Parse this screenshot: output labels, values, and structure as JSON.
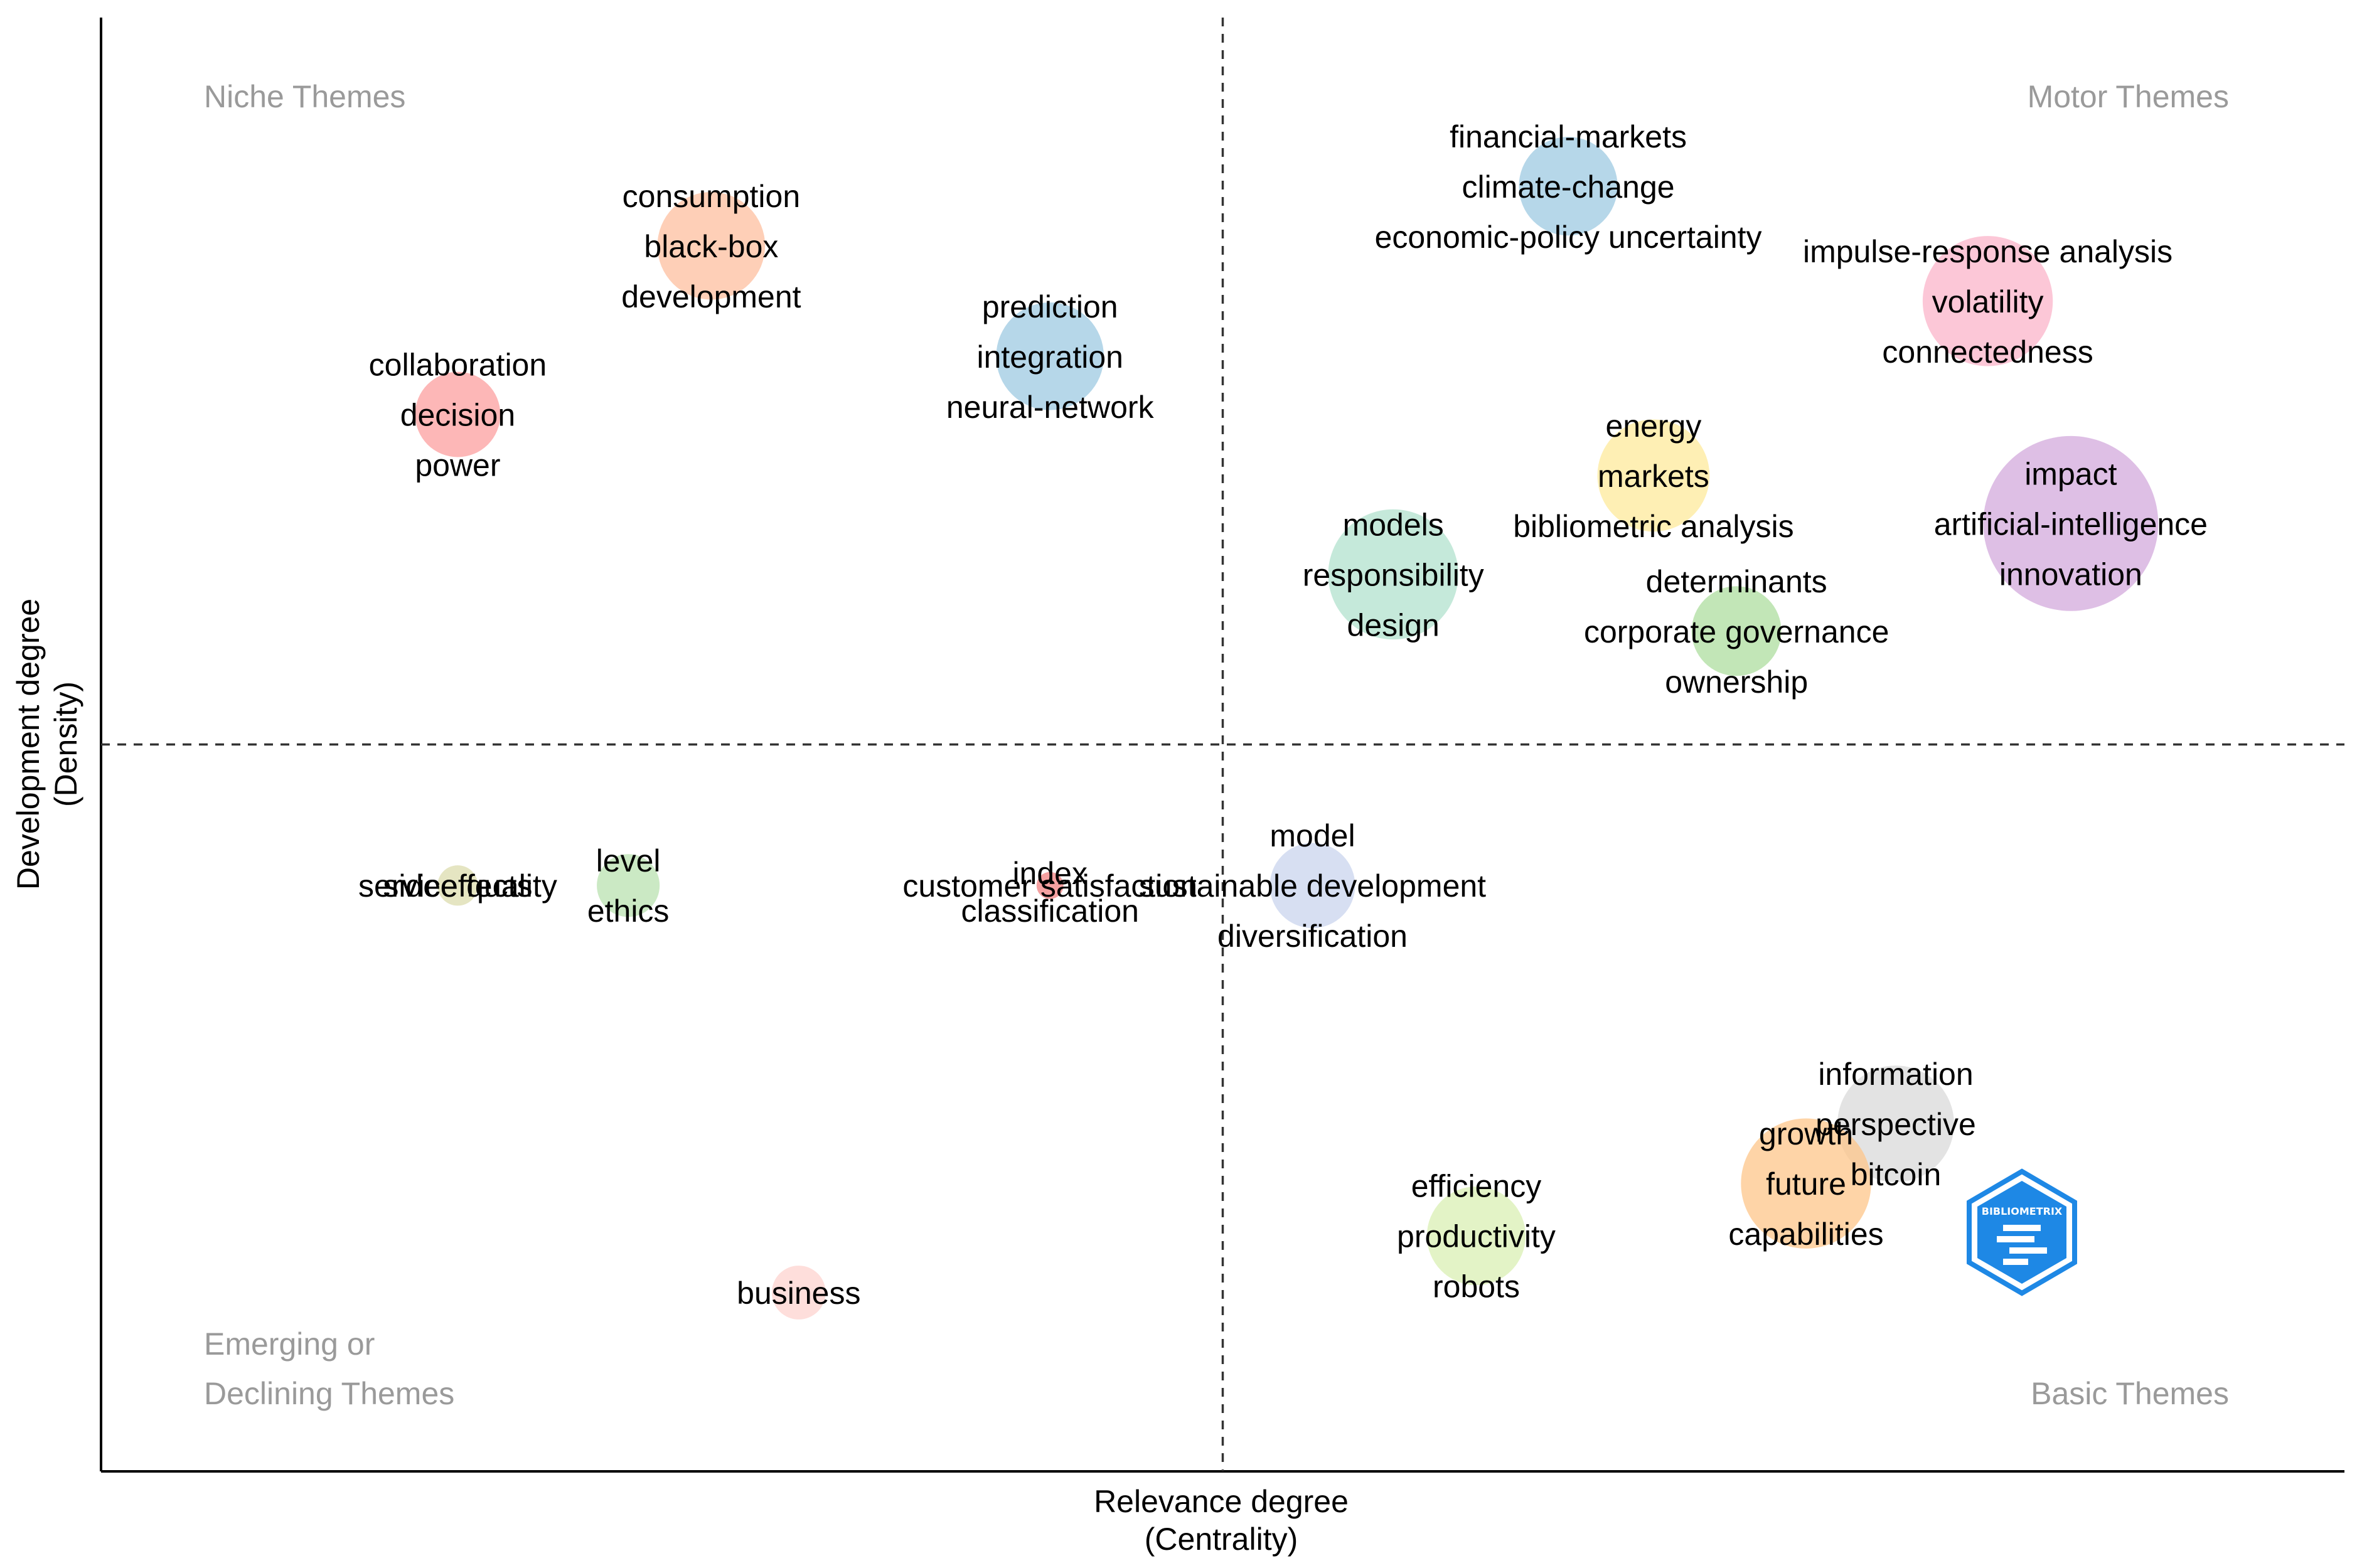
{
  "chart_data": {
    "type": "scatter",
    "title": "",
    "xlabel": "Relevance degree",
    "xlabel_sub": "(Centrality)",
    "ylabel": "Development degree",
    "ylabel_sub": "(Density)",
    "xlim": [
      0,
      100
    ],
    "ylim": [
      0,
      100
    ],
    "x_divider": 50,
    "y_divider": 50,
    "grid": false,
    "quadrant_labels": [
      {
        "id": "niche",
        "lines": [
          "Niche Themes"
        ],
        "position": "top-left"
      },
      {
        "id": "motor",
        "lines": [
          "Motor Themes"
        ],
        "position": "top-right"
      },
      {
        "id": "emerging",
        "lines": [
          "Emerging or",
          "Declining Themes"
        ],
        "position": "bottom-left"
      },
      {
        "id": "basic",
        "lines": [
          "Basic Themes"
        ],
        "position": "bottom-right"
      }
    ],
    "clusters": [
      {
        "x": 65.4,
        "y": 88.4,
        "size": 2.2,
        "color": "#9ecae1",
        "labels": [
          "financial-markets",
          "climate-change",
          "economic-policy uncertainty"
        ]
      },
      {
        "x": 84.1,
        "y": 80.5,
        "size": 2.9,
        "color": "#fbb4c9",
        "labels": [
          "impulse-response analysis",
          "volatility",
          "connectedness"
        ]
      },
      {
        "x": 27.2,
        "y": 84.3,
        "size": 2.4,
        "color": "#fdbf9f",
        "labels": [
          "consumption",
          "black-box",
          "development"
        ]
      },
      {
        "x": 42.3,
        "y": 76.7,
        "size": 2.4,
        "color": "#9ecae1",
        "labels": [
          "prediction",
          "integration",
          "neural-network"
        ]
      },
      {
        "x": 15.9,
        "y": 72.7,
        "size": 1.9,
        "color": "#fc9f9f",
        "labels": [
          "collaboration",
          "decision",
          "power"
        ]
      },
      {
        "x": 69.2,
        "y": 68.5,
        "size": 2.5,
        "color": "#fde99b",
        "labels": [
          "energy",
          "markets",
          "bibliometric analysis"
        ]
      },
      {
        "x": 87.8,
        "y": 65.2,
        "size": 3.9,
        "color": "#d3a9dc",
        "labels": [
          "impact",
          "artificial-intelligence",
          "innovation"
        ]
      },
      {
        "x": 57.6,
        "y": 61.7,
        "size": 2.9,
        "color": "#b2e2cd",
        "labels": [
          "models",
          "responsibility",
          "design"
        ]
      },
      {
        "x": 72.9,
        "y": 57.8,
        "size": 2.0,
        "color": "#addd9f",
        "labels": [
          "determinants",
          "corporate governance",
          "ownership"
        ]
      },
      {
        "x": 15.9,
        "y": 40.3,
        "size": 0.9,
        "color": "#dcdcae",
        "labels": [
          "service quality",
          "sideeffects"
        ],
        "stacked": false
      },
      {
        "x": 23.5,
        "y": 40.3,
        "size": 1.4,
        "color": "#b9e2b0",
        "labels": [
          "level",
          "ethics"
        ]
      },
      {
        "x": 42.3,
        "y": 40.3,
        "size": 0.6,
        "color": "#f08080",
        "labels": [
          "index",
          "customer satisfaction",
          "classification"
        ],
        "overlap": true
      },
      {
        "x": 54.0,
        "y": 40.3,
        "size": 1.9,
        "color": "#c9d4ee",
        "labels": [
          "model",
          "sustainable development",
          "diversification"
        ]
      },
      {
        "x": 80.0,
        "y": 23.9,
        "size": 2.6,
        "color": "#d9d9d9",
        "labels": [
          "information",
          "perspective",
          "bitcoin"
        ]
      },
      {
        "x": 76.0,
        "y": 19.8,
        "size": 2.9,
        "color": "#fdc58a",
        "labels": [
          "growth",
          "future",
          "capabilities"
        ]
      },
      {
        "x": 61.3,
        "y": 16.2,
        "size": 2.2,
        "color": "#d9efb3",
        "labels": [
          "efficiency",
          "productivity",
          "robots"
        ]
      },
      {
        "x": 31.1,
        "y": 12.3,
        "size": 1.2,
        "color": "#fdd3cf",
        "labels": [
          "business"
        ]
      }
    ]
  },
  "logo": {
    "text": "BIBLIOMETRIX",
    "color": "#1e88e5"
  }
}
